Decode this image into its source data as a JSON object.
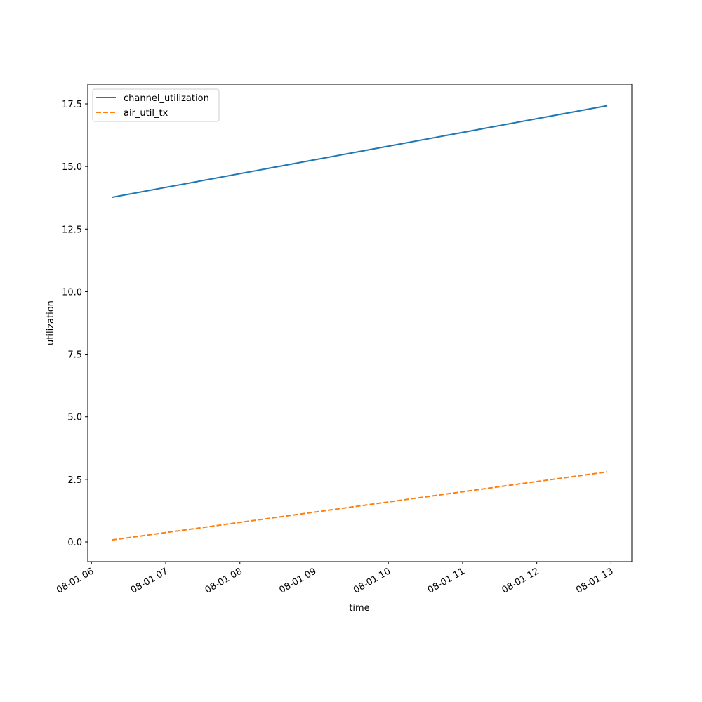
{
  "chart_data": {
    "type": "line",
    "xlabel": "time",
    "ylabel": "utilization",
    "x": [
      6.28,
      12.95
    ],
    "series": [
      {
        "name": "channel_utilization",
        "color": "#1f77b4",
        "linestyle": "solid",
        "values": [
          13.77,
          17.43
        ]
      },
      {
        "name": "air_util_tx",
        "color": "#ff7f0e",
        "linestyle": "dashed",
        "values": [
          0.08,
          2.8
        ]
      }
    ],
    "xlim": [
      5.95,
      13.28
    ],
    "xticks": [
      {
        "value": 6,
        "label": "08-01 06"
      },
      {
        "value": 7,
        "label": "08-01 07"
      },
      {
        "value": 8,
        "label": "08-01 08"
      },
      {
        "value": 9,
        "label": "08-01 09"
      },
      {
        "value": 10,
        "label": "08-01 10"
      },
      {
        "value": 11,
        "label": "08-01 11"
      },
      {
        "value": 12,
        "label": "08-01 12"
      },
      {
        "value": 13,
        "label": "08-01 13"
      }
    ],
    "ylim": [
      -0.785,
      18.285
    ],
    "yticks": [
      {
        "value": 0,
        "label": "0.0"
      },
      2.5,
      {
        "value": 5,
        "label": "5.0"
      },
      7.5,
      {
        "value": 10,
        "label": "10.0"
      },
      12.5,
      {
        "value": 15,
        "label": "15.0"
      },
      17.5
    ],
    "legend": "upper left",
    "grid": false
  }
}
